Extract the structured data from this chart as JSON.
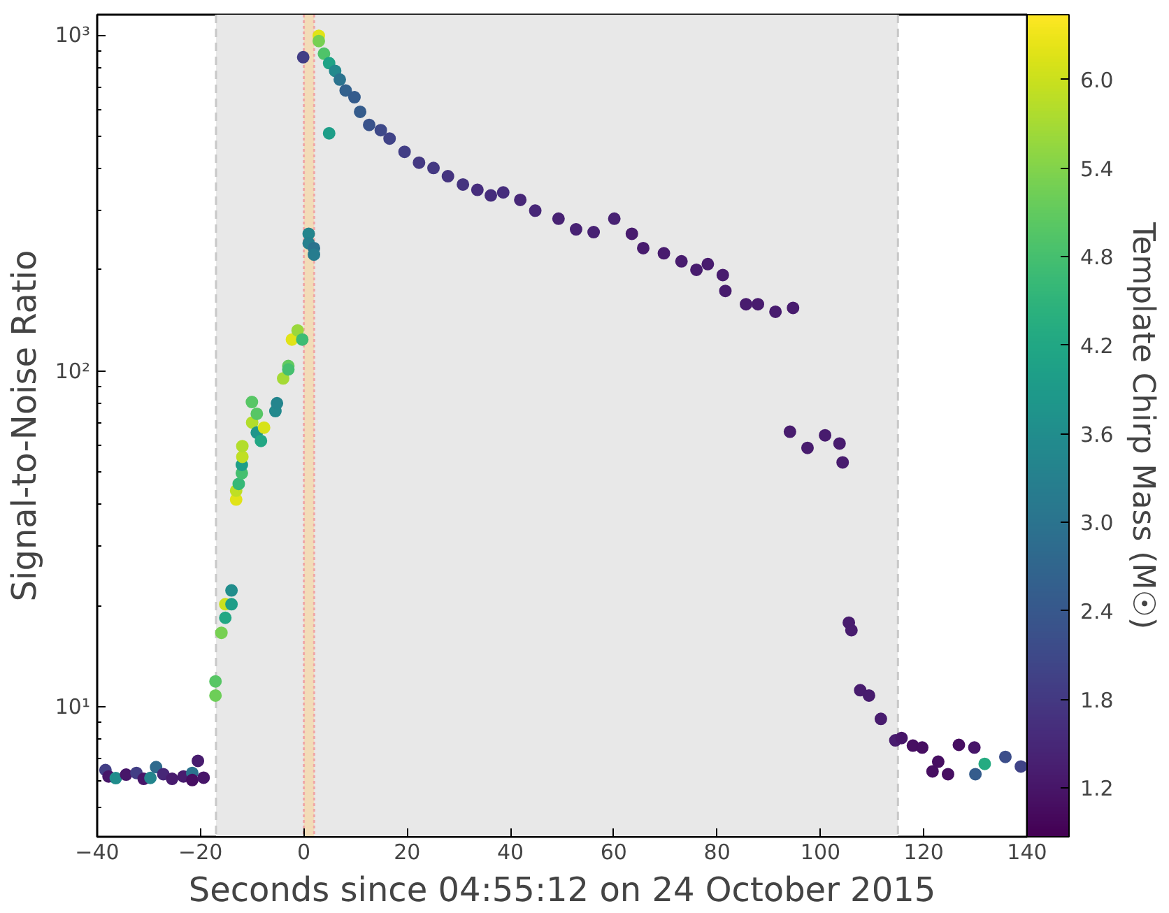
{
  "chart_data": {
    "type": "scatter",
    "xlabel": "Seconds since 04:55:12 on 24 October 2015",
    "ylabel": "Signal-to-Noise Ratio",
    "clabel": "Template Chirp Mass (M☉)",
    "log": "y",
    "grid": false,
    "marker": "circle",
    "xlim": [
      -40,
      140
    ],
    "xticks": [
      -40,
      -20,
      0,
      20,
      40,
      60,
      80,
      100,
      120,
      140
    ],
    "ylim": [
      4.1,
      1150
    ],
    "yticks": [
      {
        "value": 10,
        "label": "10¹"
      },
      {
        "value": 100,
        "label": "10²"
      },
      {
        "value": 1000,
        "label": "10³"
      }
    ],
    "clim": [
      0.87,
      6.44
    ],
    "cticks": [
      1.2,
      1.8,
      2.4,
      {
        "value": 3.0,
        "label": "3.0"
      },
      3.6,
      4.2,
      4.8,
      5.4,
      {
        "value": 6.0,
        "label": "6.0"
      }
    ],
    "bands": [
      {
        "axis": "x",
        "from": -17,
        "to": 115,
        "label": null,
        "color": "#e8e8e8"
      },
      {
        "axis": "x",
        "from": 0,
        "to": 2,
        "label": null,
        "color": "#f2dcb8"
      }
    ],
    "ref_lines": [
      {
        "axis": "x",
        "value": -17,
        "label": null,
        "color": "#c8c8c8",
        "line_style": "dashed"
      },
      {
        "axis": "x",
        "value": 115,
        "label": null,
        "color": "#c8c8c8",
        "line_style": "dashed"
      },
      {
        "axis": "x",
        "value": 0,
        "label": null,
        "color": "#f0a8a8",
        "line_style": "dotted"
      },
      {
        "axis": "x",
        "value": 2,
        "label": null,
        "color": "#f0a8a8",
        "line_style": "dotted"
      }
    ],
    "series": [
      {
        "x": [
          -38.4,
          -37.8,
          -36.4,
          -34.4,
          -32.4,
          -31,
          -29.7,
          -28.6,
          -27.2,
          -25.5,
          -23.3,
          -21.6,
          -21.6,
          -20.5,
          -19.4,
          -17.1,
          -17.1,
          -15.95,
          -15.2,
          -15.2,
          -14.0,
          -14.0,
          -13.1,
          -13.1,
          -12.6,
          -12.0,
          -12.0,
          -11.9,
          -11.9,
          -10.05,
          -10.0,
          -9.1,
          -9.1,
          -8.3,
          -7.7,
          -5.5,
          -5.2,
          -4.0,
          -3.0,
          -3.0,
          -2.3,
          -1.2,
          -0.3,
          -0.12,
          0.94,
          0.94,
          1.96,
          1.96,
          2.9,
          2.9,
          3.9,
          4.9,
          4.9,
          6.06,
          6.96,
          8.1,
          9.8,
          10.9,
          12.65,
          14.9,
          16.6,
          19.5,
          22.3,
          25.1,
          27.9,
          30.8,
          33.6,
          36.2,
          38.6,
          41.9,
          44.8,
          49.3,
          52.7,
          56.1,
          60.1,
          63.5,
          65.7,
          69.7,
          73.1,
          76.0,
          78.2,
          81.1,
          81.6,
          85.6,
          87.9,
          91.3,
          94.7,
          94.1,
          97.5,
          100.9,
          103.7,
          104.3,
          105.5,
          106.0,
          107.7,
          109.4,
          111.7,
          114.5,
          115.7,
          117.9,
          119.7,
          121.7,
          122.8,
          124.7,
          126.8,
          129.8,
          130,
          131.8,
          135.8,
          138.8
        ],
        "values": [
          6.48,
          6.2,
          6.13,
          6.28,
          6.35,
          6.1,
          6.14,
          6.61,
          6.3,
          6.1,
          6.2,
          6.35,
          6.05,
          6.9,
          6.15,
          11.9,
          10.8,
          16.6,
          18.4,
          20.2,
          20.2,
          22.2,
          41.4,
          44.0,
          46.1,
          49.6,
          52.5,
          55.5,
          59.7,
          80.8,
          70.2,
          74.5,
          65.5,
          61.9,
          67.8,
          75.9,
          80.1,
          95.0,
          103.4,
          101,
          124,
          132,
          124,
          859,
          256,
          240,
          232,
          222,
          995,
          960,
          880,
          825,
          510,
          782,
          737,
          684,
          653,
          591,
          540,
          521,
          492,
          449,
          417,
          402,
          380,
          359,
          346,
          333,
          340,
          323,
          300,
          284,
          264,
          259,
          284,
          256,
          232,
          224,
          212,
          200,
          208,
          193,
          173,
          158,
          158,
          150,
          154,
          65.9,
          59.0,
          64.3,
          60.8,
          53.4,
          17.8,
          16.9,
          11.2,
          10.8,
          9.2,
          7.94,
          8.07,
          7.66,
          7.56,
          6.42,
          6.86,
          6.3,
          7.7,
          7.56,
          6.3,
          6.76,
          7.09,
          6.64
        ],
        "cvalues": [
          1.9,
          1.2,
          3.6,
          1.2,
          1.9,
          1.2,
          3.4,
          2.8,
          1.5,
          1.3,
          1.3,
          3.0,
          1.1,
          1.3,
          1.2,
          5.0,
          5.2,
          5.3,
          4.2,
          6.0,
          4.0,
          3.6,
          6.2,
          5.9,
          4.6,
          4.8,
          4.0,
          5.9,
          5.8,
          5.0,
          5.8,
          5.0,
          3.8,
          4.2,
          6.1,
          3.5,
          3.4,
          5.7,
          5.1,
          4.8,
          6.2,
          5.6,
          4.7,
          1.9,
          3.4,
          3.3,
          3.0,
          3.2,
          6.2,
          5.3,
          4.9,
          4.1,
          4.0,
          3.5,
          3.0,
          2.6,
          2.5,
          2.5,
          2.3,
          2.1,
          2.0,
          1.9,
          1.8,
          1.8,
          1.7,
          1.7,
          1.6,
          1.6,
          1.6,
          1.5,
          1.5,
          1.4,
          1.4,
          1.4,
          1.4,
          1.3,
          1.3,
          1.3,
          1.3,
          1.3,
          1.3,
          1.3,
          1.3,
          1.3,
          1.3,
          1.3,
          1.3,
          1.3,
          1.3,
          1.3,
          1.3,
          1.3,
          1.3,
          1.3,
          1.3,
          1.3,
          1.3,
          1.3,
          1.2,
          1.1,
          1.1,
          1.1,
          1.1,
          1.1,
          1.1,
          1.2,
          2.5,
          4.3,
          2.2,
          2.0
        ]
      }
    ]
  }
}
